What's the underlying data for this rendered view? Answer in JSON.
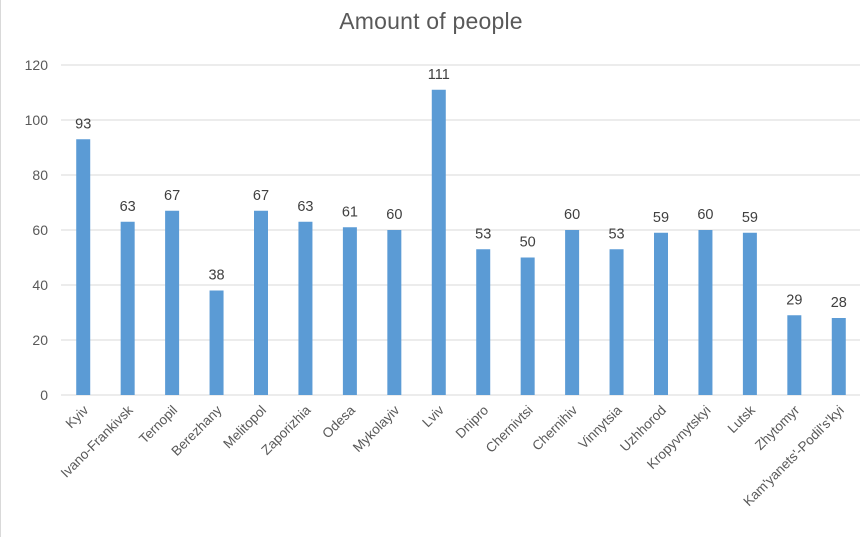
{
  "chart_data": {
    "type": "bar",
    "title": "Amount of people",
    "categories": [
      "Kyiv",
      "Ivano-Frankivsk",
      "Ternopil",
      "Berezhany",
      "Melitopol",
      "Zaporizhia",
      "Odesa",
      "Mykolayiv",
      "Lviv",
      "Dnipro",
      "Chernivtsi",
      "Chernihiv",
      "Vinnytsia",
      "Uzhhorod",
      "Kropyvnytskyi",
      "Lutsk",
      "Zhytomyr",
      "Kam'yanets'-Podil's'kyi"
    ],
    "values": [
      93,
      63,
      67,
      38,
      67,
      63,
      61,
      60,
      111,
      53,
      50,
      60,
      53,
      59,
      60,
      59,
      29,
      28
    ],
    "ylim": [
      0,
      120
    ],
    "yticks": [
      0,
      20,
      40,
      60,
      80,
      100,
      120
    ],
    "grid": true,
    "data_labels": true,
    "bar_color": "#5b9bd5"
  }
}
